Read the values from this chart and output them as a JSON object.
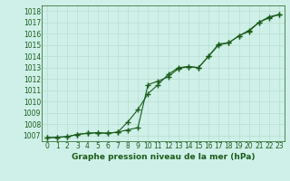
{
  "title": "Graphe pression niveau de la mer (hPa)",
  "bg_color": "#cff0e8",
  "grid_color": "#b8ddd0",
  "line_color": "#1a5c1a",
  "xlim": [
    -0.5,
    23.5
  ],
  "ylim": [
    1006.5,
    1018.5
  ],
  "yticks": [
    1007,
    1008,
    1009,
    1010,
    1011,
    1012,
    1013,
    1014,
    1015,
    1016,
    1017,
    1018
  ],
  "xticks": [
    0,
    1,
    2,
    3,
    4,
    5,
    6,
    7,
    8,
    9,
    10,
    11,
    12,
    13,
    14,
    15,
    16,
    17,
    18,
    19,
    20,
    21,
    22,
    23
  ],
  "line1_x": [
    0,
    1,
    2,
    3,
    4,
    5,
    6,
    7,
    8,
    9,
    10,
    11,
    12,
    13,
    14,
    15,
    16,
    17,
    18,
    19,
    20,
    21,
    22,
    23
  ],
  "line1_y": [
    1006.8,
    1006.85,
    1006.9,
    1007.1,
    1007.2,
    1007.25,
    1007.2,
    1007.3,
    1007.5,
    1007.7,
    1011.5,
    1011.8,
    1012.2,
    1012.9,
    1013.1,
    1013.0,
    1014.0,
    1015.1,
    1015.2,
    1015.8,
    1016.3,
    1017.0,
    1017.5,
    1017.7
  ],
  "line2_x": [
    0,
    1,
    2,
    3,
    4,
    5,
    6,
    7,
    8,
    9,
    10,
    11,
    12,
    13,
    14,
    15,
    16,
    17,
    18,
    19,
    20,
    21,
    22,
    23
  ],
  "line2_y": [
    1006.8,
    1006.85,
    1006.9,
    1007.1,
    1007.2,
    1007.25,
    1007.2,
    1007.3,
    1008.2,
    1009.3,
    1010.7,
    1011.5,
    1012.4,
    1013.0,
    1013.1,
    1013.0,
    1014.0,
    1015.0,
    1015.2,
    1015.8,
    1016.2,
    1017.0,
    1017.4,
    1017.7
  ],
  "marker": "+",
  "marker_size": 4.0,
  "line_width": 0.8,
  "label_fontsize": 5.5,
  "xlabel_fontsize": 6.5
}
